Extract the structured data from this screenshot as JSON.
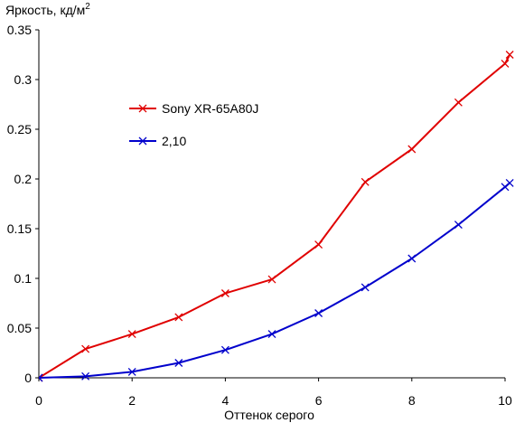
{
  "chart_data": {
    "type": "line",
    "ylabel": "Яркость, кд/м",
    "ylabel_sup": "2",
    "xlabel": "Оттенок серого",
    "xlim": [
      0,
      10
    ],
    "ylim": [
      0,
      0.35
    ],
    "x_ticks": [
      "0",
      "2",
      "4",
      "6",
      "8",
      "10"
    ],
    "y_ticks": [
      "0",
      "0.05",
      "0.1",
      "0.15",
      "0.2",
      "0.25",
      "0.3",
      "0.35"
    ],
    "grid": false,
    "legend_position": "upper-left",
    "series": [
      {
        "name": "Sony XR-65A80J",
        "color": "#e00000",
        "x": [
          0,
          1,
          2,
          3,
          4,
          5,
          6,
          7,
          8,
          9,
          10,
          10.1
        ],
        "y": [
          0,
          0.029,
          0.044,
          0.061,
          0.085,
          0.099,
          0.134,
          0.197,
          0.23,
          0.277,
          0.316,
          0.325
        ]
      },
      {
        "name": "2,10",
        "color": "#0000cc",
        "x": [
          0,
          1,
          2,
          3,
          4,
          5,
          6,
          7,
          8,
          9,
          10,
          10.1
        ],
        "y": [
          0,
          0.0015,
          0.006,
          0.015,
          0.028,
          0.044,
          0.065,
          0.091,
          0.12,
          0.154,
          0.192,
          0.196
        ]
      }
    ]
  }
}
